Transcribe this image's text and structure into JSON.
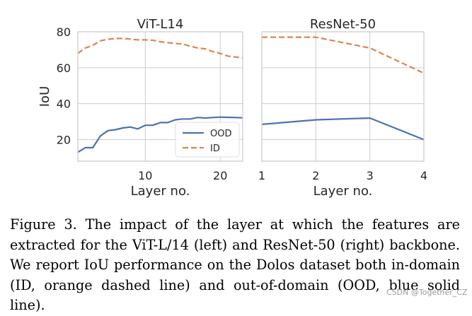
{
  "chart_data": [
    {
      "type": "line",
      "title": "ViT-L14",
      "xlabel": "Layer no.",
      "ylabel": "IoU",
      "xlim": [
        1,
        23
      ],
      "ylim": [
        8,
        80
      ],
      "xticks": [
        10,
        20
      ],
      "yticks": [
        20,
        40,
        60,
        80
      ],
      "grid": true,
      "legend": "center-right",
      "series": [
        {
          "name": "OOD",
          "style": "solid",
          "color": "#4c72b0",
          "x": [
            1,
            2,
            3,
            4,
            5,
            6,
            7,
            8,
            9,
            10,
            11,
            12,
            13,
            14,
            15,
            16,
            17,
            18,
            19,
            20,
            21,
            22,
            23
          ],
          "y": [
            13,
            15.5,
            15.5,
            22,
            25,
            25.5,
            26.5,
            27,
            26,
            28,
            28,
            29.5,
            29.5,
            31,
            31.5,
            31.5,
            32.3,
            32,
            32.3,
            32.5,
            32.4,
            32.3,
            32.1
          ]
        },
        {
          "name": "ID",
          "style": "dashed",
          "color": "#dd8452",
          "x": [
            1,
            2,
            3,
            4,
            5,
            6,
            7,
            8,
            9,
            10,
            11,
            12,
            13,
            14,
            15,
            16,
            17,
            18,
            19,
            20,
            21,
            22,
            23
          ],
          "y": [
            68,
            71,
            72.5,
            75,
            75.8,
            76.3,
            76.3,
            76,
            75.5,
            75.5,
            75.3,
            74.5,
            74,
            73.5,
            73.2,
            72,
            71,
            70.5,
            69,
            68,
            66.5,
            66,
            65.5
          ]
        }
      ]
    },
    {
      "type": "line",
      "title": "ResNet-50",
      "xlabel": "Layer no.",
      "xlim": [
        1,
        4
      ],
      "ylim": [
        8,
        80
      ],
      "xticks": [
        1,
        2,
        3,
        4
      ],
      "grid": true,
      "series": [
        {
          "name": "OOD",
          "style": "solid",
          "color": "#4c72b0",
          "x": [
            1,
            2,
            3,
            4
          ],
          "y": [
            28.5,
            31,
            32,
            20
          ]
        },
        {
          "name": "ID",
          "style": "dashed",
          "color": "#dd8452",
          "x": [
            1,
            2,
            3,
            4
          ],
          "y": [
            77,
            77,
            71,
            57
          ]
        }
      ]
    }
  ],
  "caption": "Figure 3. The impact of the layer at which the features are extracted for the ViT-L/14 (left) and ResNet-50 (right) backbone. We report IoU performance on the Dolos dataset both in-domain (ID, orange dashed line) and out-of-domain (OOD, blue solid line).",
  "watermark": "CSDN @Together_CZ"
}
